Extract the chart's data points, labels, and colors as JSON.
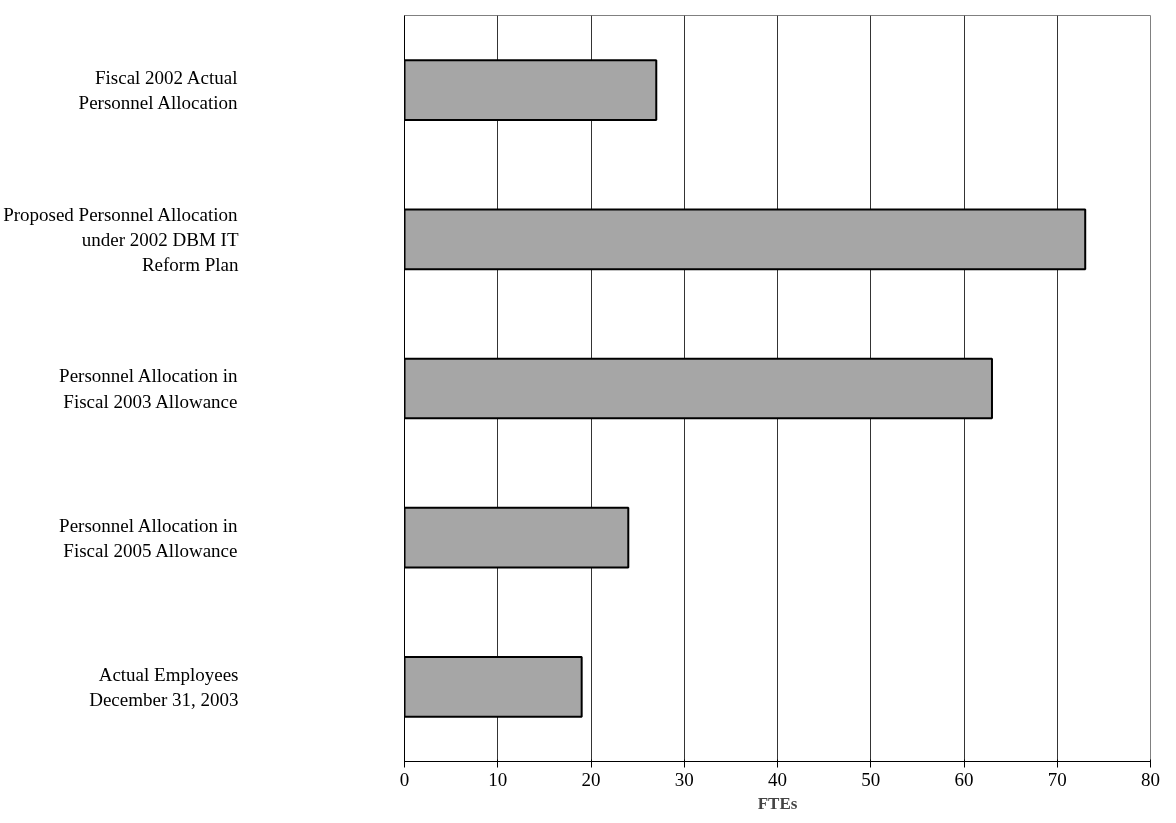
{
  "chart_data": {
    "type": "bar",
    "orientation": "horizontal",
    "categories": [
      "Fiscal 2002 Actual\nPersonnel Allocation",
      "Proposed Personnel Allocation\nunder 2002 DBM IT\nReform Plan",
      "Personnel Allocation in\nFiscal 2003 Allowance",
      "Personnel Allocation in\nFiscal 2005 Allowance",
      "Actual Employees\nDecember 31, 2003"
    ],
    "values": [
      27,
      73,
      63,
      24,
      19
    ],
    "color": "#a6a6a6",
    "xlim": [
      0,
      80
    ],
    "xticks": [
      0,
      10,
      20,
      30,
      40,
      50,
      60,
      70,
      80
    ],
    "xlabel": "FTEs",
    "grid": "x"
  }
}
